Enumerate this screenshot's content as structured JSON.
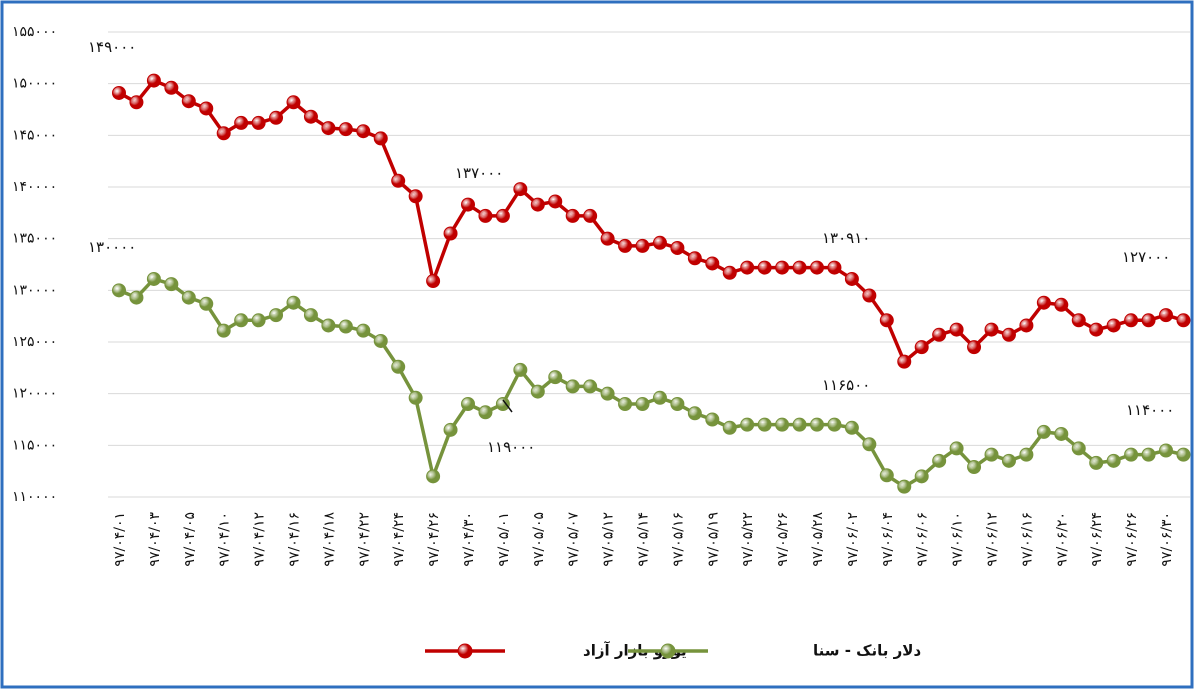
{
  "chart_data": {
    "type": "line",
    "categories": [
      "۹۷/۰۴/۰۱",
      null,
      "۹۷/۰۴/۰۳",
      null,
      "۹۷/۰۴/۰۵",
      null,
      "۹۷/۰۴/۱۰",
      null,
      "۹۷/۰۴/۱۲",
      null,
      "۹۷/۰۴/۱۶",
      null,
      "۹۷/۰۴/۱۸",
      null,
      "۹۷/۰۴/۲۲",
      null,
      "۹۷/۰۴/۲۴",
      null,
      "۹۷/۰۴/۲۶",
      null,
      "۹۷/۰۴/۳۰",
      null,
      "۹۷/۰۵/۰۱",
      null,
      "۹۷/۰۵/۰۵",
      null,
      "۹۷/۰۵/۰۷",
      null,
      "۹۷/۰۵/۱۲",
      null,
      "۹۷/۰۵/۱۴",
      null,
      "۹۷/۰۵/۱۶",
      null,
      "۹۷/۰۵/۱۹",
      null,
      "۹۷/۰۵/۲۲",
      null,
      "۹۷/۰۵/۲۶",
      null,
      "۹۷/۰۵/۲۸",
      null,
      "۹۷/۰۶/۰۲",
      null,
      "۹۷/۰۶/۰۴",
      null,
      "۹۷/۰۶/۰۶",
      null,
      "۹۷/۰۶/۱۰",
      null,
      "۹۷/۰۶/۱۲",
      null,
      "۹۷/۰۶/۱۶",
      null,
      "۹۷/۰۶/۲۰",
      null,
      "۹۷/۰۶/۲۴",
      null,
      "۹۷/۰۶/۲۶",
      null,
      "۹۷/۰۶/۳۰",
      null
    ],
    "series": [
      {
        "name": "یورو بازار آزاد",
        "color": "#c00000",
        "values": [
          149100,
          148200,
          150300,
          149600,
          148300,
          147600,
          145200,
          146200,
          146200,
          146700,
          148200,
          146800,
          145700,
          145600,
          145400,
          144700,
          140600,
          139100,
          130900,
          135500,
          138300,
          137200,
          137200,
          139800,
          138300,
          138600,
          137200,
          137200,
          135000,
          134300,
          134300,
          134600,
          134100,
          133100,
          132600,
          131700,
          132200,
          132200,
          132200,
          132200,
          132200,
          132200,
          131100,
          129500,
          127100,
          123100,
          124500,
          125700,
          126200,
          124500,
          126200,
          125700,
          126600,
          128800,
          128600,
          127100,
          126200,
          126600,
          127100,
          127100,
          127600,
          127100
        ]
      },
      {
        "name": "دلار بانک - سنا",
        "color": "#76933c",
        "values": [
          130000,
          129300,
          131100,
          130600,
          129300,
          128700,
          126100,
          127100,
          127100,
          127600,
          128800,
          127600,
          126600,
          126500,
          126100,
          125100,
          122600,
          119600,
          112000,
          116500,
          119000,
          118200,
          119000,
          122300,
          120200,
          121600,
          120700,
          120700,
          120000,
          119000,
          119000,
          119600,
          119000,
          118100,
          117500,
          116700,
          117000,
          117000,
          117000,
          117000,
          117000,
          117000,
          116700,
          115100,
          112100,
          111000,
          112000,
          113500,
          114700,
          112900,
          114100,
          113500,
          114100,
          116300,
          116100,
          114700,
          113300,
          113500,
          114100,
          114100,
          114500,
          114100
        ]
      }
    ],
    "annotations": [
      "۱۴۹۰۰۰",
      "۱۳۷۰۰۰",
      "۱۳۰۹۱۰",
      "۱۲۷۰۰۰",
      "۱۳۰۰۰۰",
      "۱۱۹۰۰۰",
      "۱۱۶۵۰۰",
      "۱۱۴۰۰۰"
    ],
    "ylim": [
      110000,
      155000
    ],
    "yticks": [
      {
        "value": 110000,
        "label": "۱۱۰۰۰۰"
      },
      {
        "value": 115000,
        "label": "۱۱۵۰۰۰"
      },
      {
        "value": 120000,
        "label": "۱۲۰۰۰۰"
      },
      {
        "value": 125000,
        "label": "۱۲۵۰۰۰"
      },
      {
        "value": 130000,
        "label": "۱۳۰۰۰۰"
      },
      {
        "value": 135000,
        "label": "۱۳۵۰۰۰"
      },
      {
        "value": 140000,
        "label": "۱۴۰۰۰۰"
      },
      {
        "value": 145000,
        "label": "۱۴۵۰۰۰"
      },
      {
        "value": 150000,
        "label": "۱۵۰۰۰۰"
      },
      {
        "value": 155000,
        "label": "۱۵۵۰۰۰"
      }
    ],
    "grid": true
  }
}
